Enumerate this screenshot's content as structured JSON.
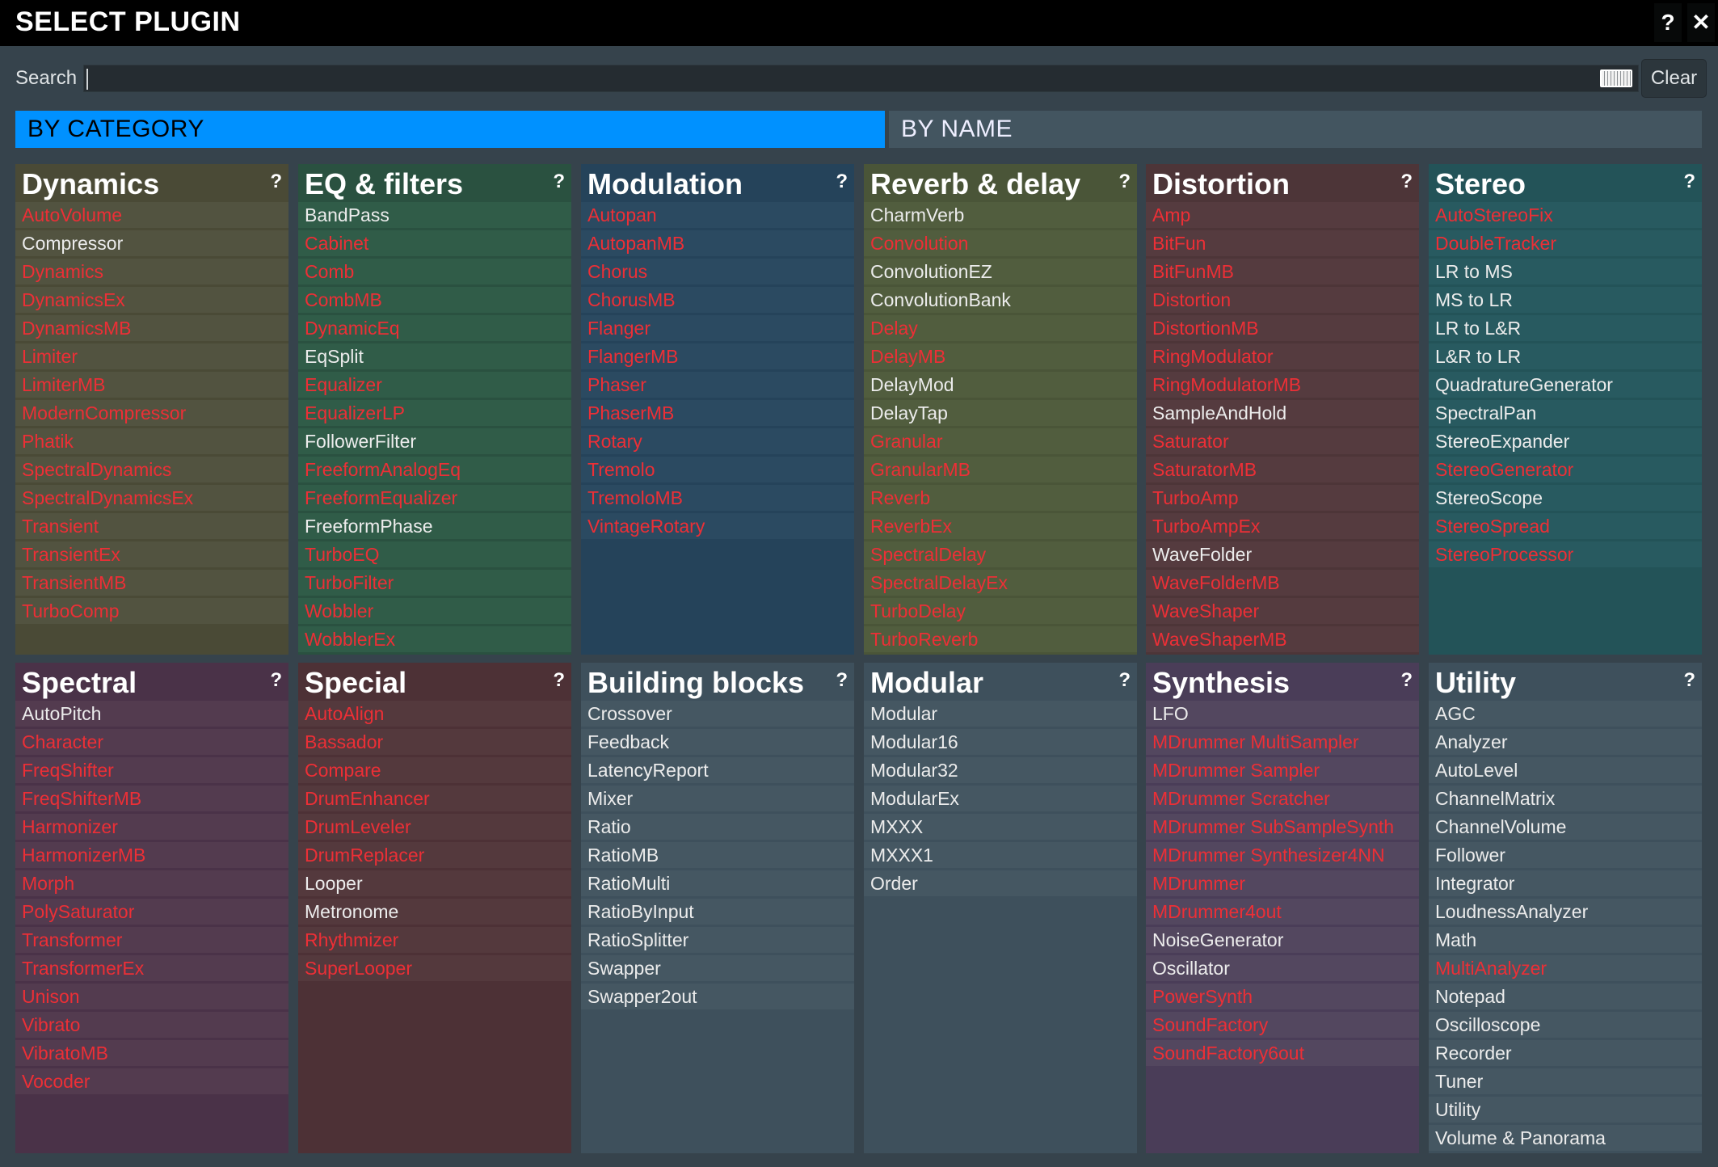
{
  "window": {
    "title": "SELECT PLUGIN",
    "help_label": "?",
    "close_label": "✕"
  },
  "search": {
    "label": "Search",
    "value": "",
    "keyboard_icon": "keyboard-icon",
    "clear_label": "Clear"
  },
  "tabs": [
    {
      "label": "BY CATEGORY",
      "active": true
    },
    {
      "label": "BY NAME",
      "active": false
    }
  ],
  "colors": {
    "accent": "#0091ff",
    "unavailable_text": "#ec2f36",
    "normal_text": "#ececec"
  },
  "categories": [
    {
      "title": "Dynamics",
      "help": "?",
      "header_color": "#4a4a36",
      "item_color": "#525340",
      "items": [
        {
          "name": "AutoVolume",
          "color": "red"
        },
        {
          "name": "Compressor",
          "color": "white"
        },
        {
          "name": "Dynamics",
          "color": "red"
        },
        {
          "name": "DynamicsEx",
          "color": "red"
        },
        {
          "name": "DynamicsMB",
          "color": "red"
        },
        {
          "name": "Limiter",
          "color": "red"
        },
        {
          "name": "LimiterMB",
          "color": "red"
        },
        {
          "name": "ModernCompressor",
          "color": "red"
        },
        {
          "name": "Phatik",
          "color": "red"
        },
        {
          "name": "SpectralDynamics",
          "color": "red"
        },
        {
          "name": "SpectralDynamicsEx",
          "color": "red"
        },
        {
          "name": "Transient",
          "color": "red"
        },
        {
          "name": "TransientEx",
          "color": "red"
        },
        {
          "name": "TransientMB",
          "color": "red"
        },
        {
          "name": "TurboComp",
          "color": "red"
        }
      ]
    },
    {
      "title": "EQ & filters",
      "help": "?",
      "header_color": "#2a5140",
      "item_color": "#305c48",
      "items": [
        {
          "name": "BandPass",
          "color": "white"
        },
        {
          "name": "Cabinet",
          "color": "red"
        },
        {
          "name": "Comb",
          "color": "red"
        },
        {
          "name": "CombMB",
          "color": "red"
        },
        {
          "name": "DynamicEq",
          "color": "red"
        },
        {
          "name": "EqSplit",
          "color": "white"
        },
        {
          "name": "Equalizer",
          "color": "red"
        },
        {
          "name": "EqualizerLP",
          "color": "red"
        },
        {
          "name": "FollowerFilter",
          "color": "white"
        },
        {
          "name": "FreeformAnalogEq",
          "color": "red"
        },
        {
          "name": "FreeformEqualizer",
          "color": "red"
        },
        {
          "name": "FreeformPhase",
          "color": "white"
        },
        {
          "name": "TurboEQ",
          "color": "red"
        },
        {
          "name": "TurboFilter",
          "color": "red"
        },
        {
          "name": "Wobbler",
          "color": "red"
        },
        {
          "name": "WobblerEx",
          "color": "red"
        }
      ]
    },
    {
      "title": "Modulation",
      "help": "?",
      "header_color": "#25435a",
      "item_color": "#2b4a61",
      "items": [
        {
          "name": "Autopan",
          "color": "red"
        },
        {
          "name": "AutopanMB",
          "color": "red"
        },
        {
          "name": "Chorus",
          "color": "red"
        },
        {
          "name": "ChorusMB",
          "color": "red"
        },
        {
          "name": "Flanger",
          "color": "red"
        },
        {
          "name": "FlangerMB",
          "color": "red"
        },
        {
          "name": "Phaser",
          "color": "red"
        },
        {
          "name": "PhaserMB",
          "color": "red"
        },
        {
          "name": "Rotary",
          "color": "red"
        },
        {
          "name": "Tremolo",
          "color": "red"
        },
        {
          "name": "TremoloMB",
          "color": "red"
        },
        {
          "name": "VintageRotary",
          "color": "red"
        }
      ]
    },
    {
      "title": "Reverb & delay",
      "help": "?",
      "header_color": "#4a5538",
      "item_color": "#515d3e",
      "items": [
        {
          "name": "CharmVerb",
          "color": "white"
        },
        {
          "name": "Convolution",
          "color": "red"
        },
        {
          "name": "ConvolutionEZ",
          "color": "white"
        },
        {
          "name": "ConvolutionBank",
          "color": "white"
        },
        {
          "name": "Delay",
          "color": "red"
        },
        {
          "name": "DelayMB",
          "color": "red"
        },
        {
          "name": "DelayMod",
          "color": "white"
        },
        {
          "name": "DelayTap",
          "color": "white"
        },
        {
          "name": "Granular",
          "color": "red"
        },
        {
          "name": "GranularMB",
          "color": "red"
        },
        {
          "name": "Reverb",
          "color": "red"
        },
        {
          "name": "ReverbEx",
          "color": "red"
        },
        {
          "name": "SpectralDelay",
          "color": "red"
        },
        {
          "name": "SpectralDelayEx",
          "color": "red"
        },
        {
          "name": "TurboDelay",
          "color": "red"
        },
        {
          "name": "TurboReverb",
          "color": "red"
        }
      ]
    },
    {
      "title": "Distortion",
      "help": "?",
      "header_color": "#4d3538",
      "item_color": "#553b3f",
      "items": [
        {
          "name": "Amp",
          "color": "red"
        },
        {
          "name": "BitFun",
          "color": "red"
        },
        {
          "name": "BitFunMB",
          "color": "red"
        },
        {
          "name": "Distortion",
          "color": "red"
        },
        {
          "name": "DistortionMB",
          "color": "red"
        },
        {
          "name": "RingModulator",
          "color": "red"
        },
        {
          "name": "RingModulatorMB",
          "color": "red"
        },
        {
          "name": "SampleAndHold",
          "color": "white"
        },
        {
          "name": "Saturator",
          "color": "red"
        },
        {
          "name": "SaturatorMB",
          "color": "red"
        },
        {
          "name": "TurboAmp",
          "color": "red"
        },
        {
          "name": "TurboAmpEx",
          "color": "red"
        },
        {
          "name": "WaveFolder",
          "color": "white"
        },
        {
          "name": "WaveFolderMB",
          "color": "red"
        },
        {
          "name": "WaveShaper",
          "color": "red"
        },
        {
          "name": "WaveShaperMB",
          "color": "red"
        }
      ]
    },
    {
      "title": "Stereo",
      "help": "?",
      "header_color": "#235358",
      "item_color": "#285a60",
      "items": [
        {
          "name": "AutoStereoFix",
          "color": "red"
        },
        {
          "name": "DoubleTracker",
          "color": "red"
        },
        {
          "name": "LR to MS",
          "color": "white"
        },
        {
          "name": "MS to LR",
          "color": "white"
        },
        {
          "name": "LR to L&R",
          "color": "white"
        },
        {
          "name": "L&R to LR",
          "color": "white"
        },
        {
          "name": "QuadratureGenerator",
          "color": "white"
        },
        {
          "name": "SpectralPan",
          "color": "white"
        },
        {
          "name": "StereoExpander",
          "color": "white"
        },
        {
          "name": "StereoGenerator",
          "color": "red"
        },
        {
          "name": "StereoScope",
          "color": "white"
        },
        {
          "name": "StereoSpread",
          "color": "red"
        },
        {
          "name": "StereoProcessor",
          "color": "red"
        }
      ]
    },
    {
      "title": "Spectral",
      "help": "?",
      "header_color": "#4a3248",
      "item_color": "#533b4f",
      "items": [
        {
          "name": "AutoPitch",
          "color": "white"
        },
        {
          "name": "Character",
          "color": "red"
        },
        {
          "name": "FreqShifter",
          "color": "red"
        },
        {
          "name": "FreqShifterMB",
          "color": "red"
        },
        {
          "name": "Harmonizer",
          "color": "red"
        },
        {
          "name": "HarmonizerMB",
          "color": "red"
        },
        {
          "name": "Morph",
          "color": "red"
        },
        {
          "name": "PolySaturator",
          "color": "red"
        },
        {
          "name": "Transformer",
          "color": "red"
        },
        {
          "name": "TransformerEx",
          "color": "red"
        },
        {
          "name": "Unison",
          "color": "red"
        },
        {
          "name": "Vibrato",
          "color": "red"
        },
        {
          "name": "VibratoMB",
          "color": "red"
        },
        {
          "name": "Vocoder",
          "color": "red"
        }
      ]
    },
    {
      "title": "Special",
      "help": "?",
      "header_color": "#4d3136",
      "item_color": "#54393d",
      "items": [
        {
          "name": "AutoAlign",
          "color": "red"
        },
        {
          "name": "Bassador",
          "color": "red"
        },
        {
          "name": "Compare",
          "color": "red"
        },
        {
          "name": "DrumEnhancer",
          "color": "red"
        },
        {
          "name": "DrumLeveler",
          "color": "red"
        },
        {
          "name": "DrumReplacer",
          "color": "red"
        },
        {
          "name": "Looper",
          "color": "white"
        },
        {
          "name": "Metronome",
          "color": "white"
        },
        {
          "name": "Rhythmizer",
          "color": "red"
        },
        {
          "name": "SuperLooper",
          "color": "red"
        }
      ]
    },
    {
      "title": "Building blocks",
      "help": "?",
      "header_color": "#3e505c",
      "item_color": "#455762",
      "items": [
        {
          "name": "Crossover",
          "color": "white"
        },
        {
          "name": "Feedback",
          "color": "white"
        },
        {
          "name": "LatencyReport",
          "color": "white"
        },
        {
          "name": "Mixer",
          "color": "white"
        },
        {
          "name": "Ratio",
          "color": "white"
        },
        {
          "name": "RatioMB",
          "color": "white"
        },
        {
          "name": "RatioMulti",
          "color": "white"
        },
        {
          "name": "RatioByInput",
          "color": "white"
        },
        {
          "name": "RatioSplitter",
          "color": "white"
        },
        {
          "name": "Swapper",
          "color": "white"
        },
        {
          "name": "Swapper2out",
          "color": "white"
        }
      ]
    },
    {
      "title": "Modular",
      "help": "?",
      "header_color": "#3e505c",
      "item_color": "#455762",
      "items": [
        {
          "name": "Modular",
          "color": "white"
        },
        {
          "name": "Modular16",
          "color": "white"
        },
        {
          "name": "Modular32",
          "color": "white"
        },
        {
          "name": "ModularEx",
          "color": "white"
        },
        {
          "name": "MXXX",
          "color": "white"
        },
        {
          "name": "MXXX1",
          "color": "white"
        },
        {
          "name": "Order",
          "color": "white"
        }
      ]
    },
    {
      "title": "Synthesis",
      "help": "?",
      "header_color": "#4a3d58",
      "item_color": "#53475f",
      "items": [
        {
          "name": "LFO",
          "color": "white"
        },
        {
          "name": "MDrummer MultiSampler",
          "color": "red"
        },
        {
          "name": "MDrummer Sampler",
          "color": "red"
        },
        {
          "name": "MDrummer Scratcher",
          "color": "red"
        },
        {
          "name": "MDrummer SubSampleSynth",
          "color": "red"
        },
        {
          "name": "MDrummer Synthesizer4NN",
          "color": "red"
        },
        {
          "name": "MDrummer",
          "color": "red"
        },
        {
          "name": "MDrummer4out",
          "color": "red"
        },
        {
          "name": "NoiseGenerator",
          "color": "white"
        },
        {
          "name": "Oscillator",
          "color": "white"
        },
        {
          "name": "PowerSynth",
          "color": "red"
        },
        {
          "name": "SoundFactory",
          "color": "red"
        },
        {
          "name": "SoundFactory6out",
          "color": "red"
        }
      ]
    },
    {
      "title": "Utility",
      "help": "?",
      "header_color": "#3e505c",
      "item_color": "#455762",
      "items": [
        {
          "name": "AGC",
          "color": "white"
        },
        {
          "name": "Analyzer",
          "color": "white"
        },
        {
          "name": "AutoLevel",
          "color": "white"
        },
        {
          "name": "ChannelMatrix",
          "color": "white"
        },
        {
          "name": "ChannelVolume",
          "color": "white"
        },
        {
          "name": "Follower",
          "color": "white"
        },
        {
          "name": "Integrator",
          "color": "white"
        },
        {
          "name": "LoudnessAnalyzer",
          "color": "white"
        },
        {
          "name": "Math",
          "color": "white"
        },
        {
          "name": "MultiAnalyzer",
          "color": "red"
        },
        {
          "name": "Notepad",
          "color": "white"
        },
        {
          "name": "Oscilloscope",
          "color": "white"
        },
        {
          "name": "Recorder",
          "color": "white"
        },
        {
          "name": "Tuner",
          "color": "white"
        },
        {
          "name": "Utility",
          "color": "white"
        },
        {
          "name": "Volume & Panorama",
          "color": "white"
        }
      ]
    }
  ]
}
